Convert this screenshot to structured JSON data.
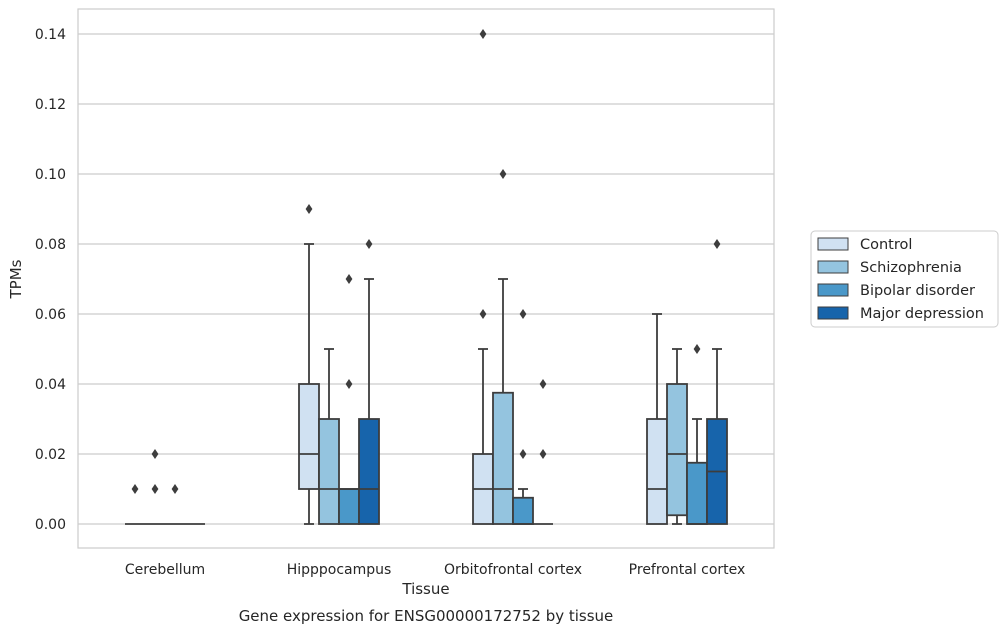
{
  "chart_data": {
    "type": "box",
    "title": "Gene expression for ENSG00000172752 by tissue",
    "xlabel": "Tissue",
    "ylabel": "TPMs",
    "ylim": [
      -0.007,
      0.147
    ],
    "yticks": [
      "0.00",
      "0.02",
      "0.04",
      "0.06",
      "0.08",
      "0.10",
      "0.12",
      "0.14"
    ],
    "grid": true,
    "legend_position": "right",
    "categories": [
      "Cerebellum",
      "Hipppocampus",
      "Orbitofrontal cortex",
      "Prefrontal cortex"
    ],
    "series": [
      {
        "name": "Control",
        "color": "#d0e1f2",
        "boxes": [
          {
            "min": 0,
            "q1": 0,
            "median": 0,
            "q3": 0,
            "max": 0,
            "outliers": [
              0.01
            ]
          },
          {
            "min": 0,
            "q1": 0.01,
            "median": 0.02,
            "q3": 0.04,
            "max": 0.08,
            "outliers": [
              0.09
            ]
          },
          {
            "min": 0,
            "q1": 0,
            "median": 0.01,
            "q3": 0.02,
            "max": 0.05,
            "outliers": [
              0.06,
              0.14
            ]
          },
          {
            "min": 0,
            "q1": 0,
            "median": 0.01,
            "q3": 0.03,
            "max": 0.06,
            "outliers": []
          }
        ]
      },
      {
        "name": "Schizophrenia",
        "color": "#94c4df",
        "boxes": [
          {
            "min": 0,
            "q1": 0,
            "median": 0,
            "q3": 0,
            "max": 0,
            "outliers": [
              0.01,
              0.02
            ]
          },
          {
            "min": 0,
            "q1": 0,
            "median": 0.01,
            "q3": 0.03,
            "max": 0.05,
            "outliers": []
          },
          {
            "min": 0,
            "q1": 0,
            "median": 0.01,
            "q3": 0.0375,
            "max": 0.07,
            "outliers": [
              0.1
            ]
          },
          {
            "min": 0,
            "q1": 0.0025,
            "median": 0.02,
            "q3": 0.04,
            "max": 0.05,
            "outliers": []
          }
        ]
      },
      {
        "name": "Bipolar disorder",
        "color": "#4a98c9",
        "boxes": [
          {
            "min": 0,
            "q1": 0,
            "median": 0,
            "q3": 0,
            "max": 0,
            "outliers": [
              0.01
            ]
          },
          {
            "min": 0,
            "q1": 0,
            "median": 0.01,
            "q3": 0.01,
            "max": 0.01,
            "outliers": [
              0.04,
              0.07
            ]
          },
          {
            "min": 0,
            "q1": 0,
            "median": 0,
            "q3": 0.0075,
            "max": 0.01,
            "outliers": [
              0.02,
              0.06
            ]
          },
          {
            "min": 0,
            "q1": 0,
            "median": 0,
            "q3": 0.0175,
            "max": 0.03,
            "outliers": [
              0.05
            ]
          }
        ]
      },
      {
        "name": "Major depression",
        "color": "#1764ab",
        "boxes": [
          {
            "min": 0,
            "q1": 0,
            "median": 0,
            "q3": 0,
            "max": 0,
            "outliers": []
          },
          {
            "min": 0,
            "q1": 0,
            "median": 0.01,
            "q3": 0.03,
            "max": 0.07,
            "outliers": [
              0.08
            ]
          },
          {
            "min": 0,
            "q1": 0,
            "median": 0,
            "q3": 0,
            "max": 0,
            "outliers": [
              0.02,
              0.04
            ]
          },
          {
            "min": 0,
            "q1": 0,
            "median": 0.015,
            "q3": 0.03,
            "max": 0.05,
            "outliers": [
              0.08
            ]
          }
        ]
      }
    ]
  }
}
